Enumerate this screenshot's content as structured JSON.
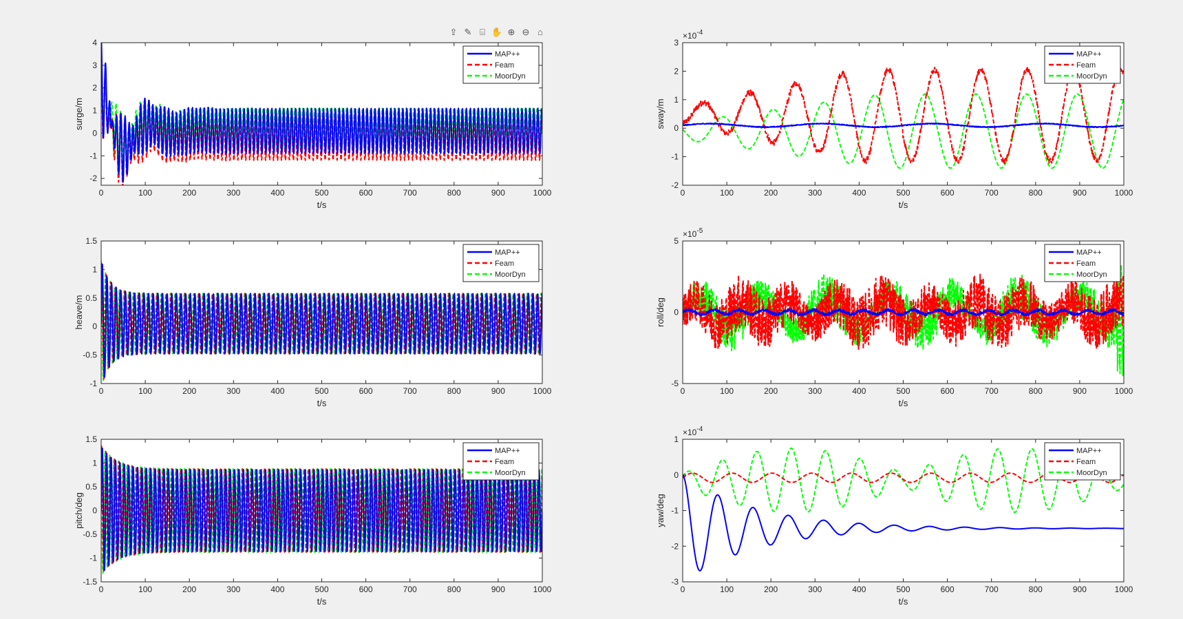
{
  "figure": {
    "background": "#f0f0f0",
    "toolbar": [
      {
        "icon": "export-icon",
        "glyph": "⇪"
      },
      {
        "icon": "brush-icon",
        "glyph": "✎"
      },
      {
        "icon": "datatip-icon",
        "glyph": "⌸"
      },
      {
        "icon": "pan-hand-icon",
        "glyph": "✋"
      },
      {
        "icon": "zoom-in-icon",
        "glyph": "⊕"
      },
      {
        "icon": "zoom-out-icon",
        "glyph": "⊖"
      },
      {
        "icon": "home-icon",
        "glyph": "⌂"
      }
    ]
  },
  "legend": [
    "MAP++",
    "Feam",
    "MoorDyn"
  ],
  "colors": {
    "MAP++": "#0000ff",
    "Feam": "#ff0000",
    "MoorDyn": "#00ff00"
  },
  "chart_data": [
    {
      "type": "line",
      "xlabel": "t/s",
      "ylabel": "surge/m",
      "exponent": "",
      "xlim": [
        0,
        1000
      ],
      "xticks": [
        0,
        100,
        200,
        300,
        400,
        500,
        600,
        700,
        800,
        900,
        1000
      ],
      "ylim": [
        -2.3,
        4
      ],
      "yticks": [
        -2,
        -1,
        0,
        1,
        2,
        3,
        4
      ],
      "legend_position": "top-right",
      "grid": false,
      "series": [
        {
          "name": "MAP++",
          "style": "solid",
          "values": "decaying oscillation from ~2.5 to band ±1.1 (period ~9 s)"
        },
        {
          "name": "Feam",
          "style": "dashed",
          "values": "decaying oscillation from ~2.5 to band -1.1..0.9"
        },
        {
          "name": "MoorDyn",
          "style": "dashed",
          "values": "decaying oscillation from ~2.5 to band -0.9..1.1"
        }
      ]
    },
    {
      "type": "line",
      "xlabel": "t/s",
      "ylabel": "sway/m",
      "exponent": "-4",
      "xlim": [
        0,
        1000
      ],
      "xticks": [
        0,
        100,
        200,
        300,
        400,
        500,
        600,
        700,
        800,
        900,
        1000
      ],
      "ylim": [
        -2,
        3
      ],
      "yticks": [
        -2,
        -1,
        0,
        1,
        2,
        3
      ],
      "legend_position": "top-right",
      "grid": false,
      "series": [
        {
          "name": "MAP++",
          "style": "solid",
          "values": "near 0.1e-4 throughout"
        },
        {
          "name": "Feam",
          "style": "dashed",
          "values": "slow oscillation growing to ±2e-4 around 0.5e-4"
        },
        {
          "name": "MoorDyn",
          "style": "dashed",
          "values": "slow oscillation ~-1.5e-4..1.3e-4"
        }
      ]
    },
    {
      "type": "line",
      "xlabel": "t/s",
      "ylabel": "heave/m",
      "exponent": "",
      "xlim": [
        0,
        1000
      ],
      "xticks": [
        0,
        100,
        200,
        300,
        400,
        500,
        600,
        700,
        800,
        900,
        1000
      ],
      "ylim": [
        -1,
        1.5
      ],
      "yticks": [
        -1,
        -0.5,
        0,
        0.5,
        1,
        1.5
      ],
      "legend_position": "top-right",
      "grid": false,
      "series": [
        {
          "name": "MAP++",
          "style": "solid",
          "values": "oscillation ±0.55 after initial peak 1.2"
        },
        {
          "name": "Feam",
          "style": "dashed",
          "values": "oscillation ±0.55 after initial peak 1.2"
        },
        {
          "name": "MoorDyn",
          "style": "dashed",
          "values": "oscillation ±0.55 after initial peak 1.2"
        }
      ]
    },
    {
      "type": "line",
      "xlabel": "t/s",
      "ylabel": "roll/deg",
      "exponent": "-5",
      "xlim": [
        0,
        1000
      ],
      "xticks": [
        0,
        100,
        200,
        300,
        400,
        500,
        600,
        700,
        800,
        900,
        1000
      ],
      "ylim": [
        -5,
        5
      ],
      "yticks": [
        -5,
        0,
        5
      ],
      "legend_position": "top-right",
      "grid": false,
      "series": [
        {
          "name": "MAP++",
          "style": "solid",
          "values": "near 0"
        },
        {
          "name": "Feam",
          "style": "dashed",
          "values": "noisy ±3e-5"
        },
        {
          "name": "MoorDyn",
          "style": "dashed",
          "values": "noisy ±2.5e-5 spikes to 4.5e-5"
        }
      ]
    },
    {
      "type": "line",
      "xlabel": "t/s",
      "ylabel": "pitch/deg",
      "exponent": "",
      "xlim": [
        0,
        1000
      ],
      "xticks": [
        0,
        100,
        200,
        300,
        400,
        500,
        600,
        700,
        800,
        900,
        1000
      ],
      "ylim": [
        -1.5,
        1.5
      ],
      "yticks": [
        -1.5,
        -1,
        -0.5,
        0,
        0.5,
        1,
        1.5
      ],
      "legend_position": "top-right",
      "grid": false,
      "series": [
        {
          "name": "MAP++",
          "style": "solid",
          "values": "oscillation ±0.9 after initial peak 1.4"
        },
        {
          "name": "Feam",
          "style": "dashed",
          "values": "oscillation ±0.9 after initial peak 1.4"
        },
        {
          "name": "MoorDyn",
          "style": "dashed",
          "values": "oscillation ±0.9 after initial peak 1.4"
        }
      ]
    },
    {
      "type": "line",
      "xlabel": "t/s",
      "ylabel": "yaw/deg",
      "exponent": "-4",
      "xlim": [
        0,
        1000
      ],
      "xticks": [
        0,
        100,
        200,
        300,
        400,
        500,
        600,
        700,
        800,
        900,
        1000
      ],
      "ylim": [
        -3,
        1
      ],
      "yticks": [
        -3,
        -2,
        -1,
        0,
        1
      ],
      "legend_position": "top-right",
      "grid": false,
      "series": [
        {
          "name": "MAP++",
          "style": "solid",
          "values": "damped oscillation from 0 (min -2.8e-4) settling to -1.5e-4, period ~80 s"
        },
        {
          "name": "Feam",
          "style": "dashed",
          "values": "small oscillation around -0.05e-4"
        },
        {
          "name": "MoorDyn",
          "style": "dashed",
          "values": "oscillation around -0.2e-4, amplitude up to 1e-4"
        }
      ]
    }
  ]
}
